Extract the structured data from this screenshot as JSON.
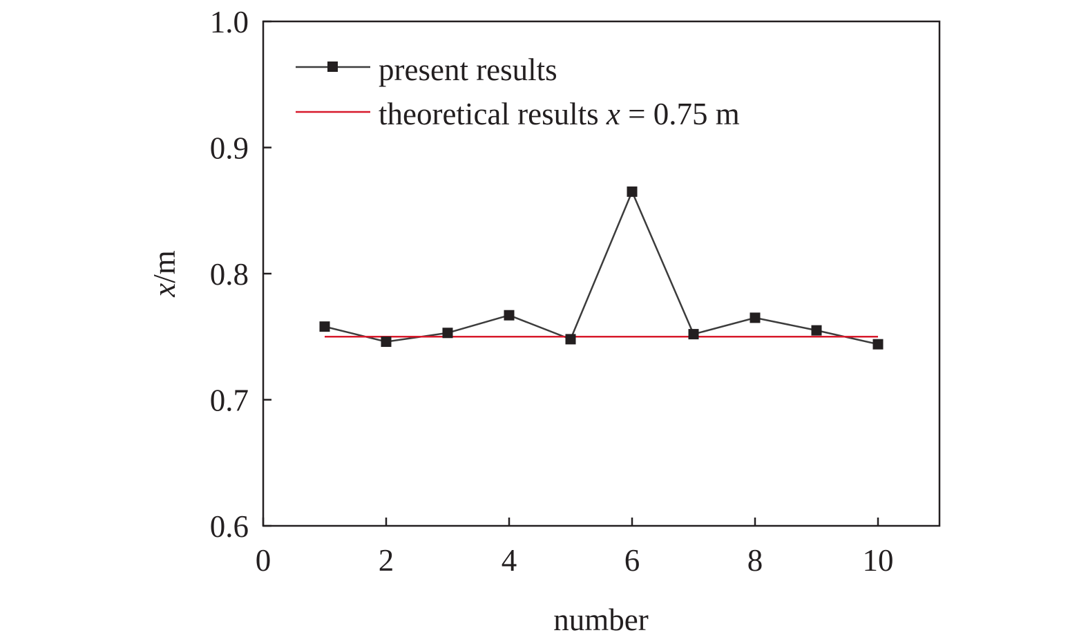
{
  "chart_data": {
    "type": "line",
    "xlabel": "number",
    "ylabel": {
      "var": "x",
      "unit": "/m"
    },
    "xlim": [
      0,
      11
    ],
    "ylim": [
      0.6,
      1.0
    ],
    "xticks": [
      0,
      2,
      4,
      6,
      8,
      10
    ],
    "xtick_labels": [
      "0",
      "2",
      "4",
      "6",
      "8",
      "10"
    ],
    "yticks": [
      0.6,
      0.7,
      0.8,
      0.9,
      1.0
    ],
    "ytick_labels": [
      "0.6",
      "0.7",
      "0.8",
      "0.9",
      "1.0"
    ],
    "grid": false,
    "legend_position": "top-left",
    "series": [
      {
        "name": "present results",
        "color": "#3c3c3c",
        "marker_color": "#231f20",
        "marker": "square",
        "x": [
          1,
          2,
          3,
          4,
          5,
          6,
          7,
          8,
          9,
          10
        ],
        "y": [
          0.758,
          0.746,
          0.753,
          0.767,
          0.748,
          0.865,
          0.752,
          0.765,
          0.755,
          0.744
        ]
      },
      {
        "name": "theoretical results x = 0.75 m",
        "color": "#d7192b",
        "marker": "none",
        "x": [
          1,
          10
        ],
        "y": [
          0.75,
          0.75
        ]
      }
    ],
    "legend": [
      {
        "text": "present results"
      },
      {
        "text": "theoretical results ",
        "italic": "x",
        "rest": " = 0.75 m"
      }
    ]
  }
}
